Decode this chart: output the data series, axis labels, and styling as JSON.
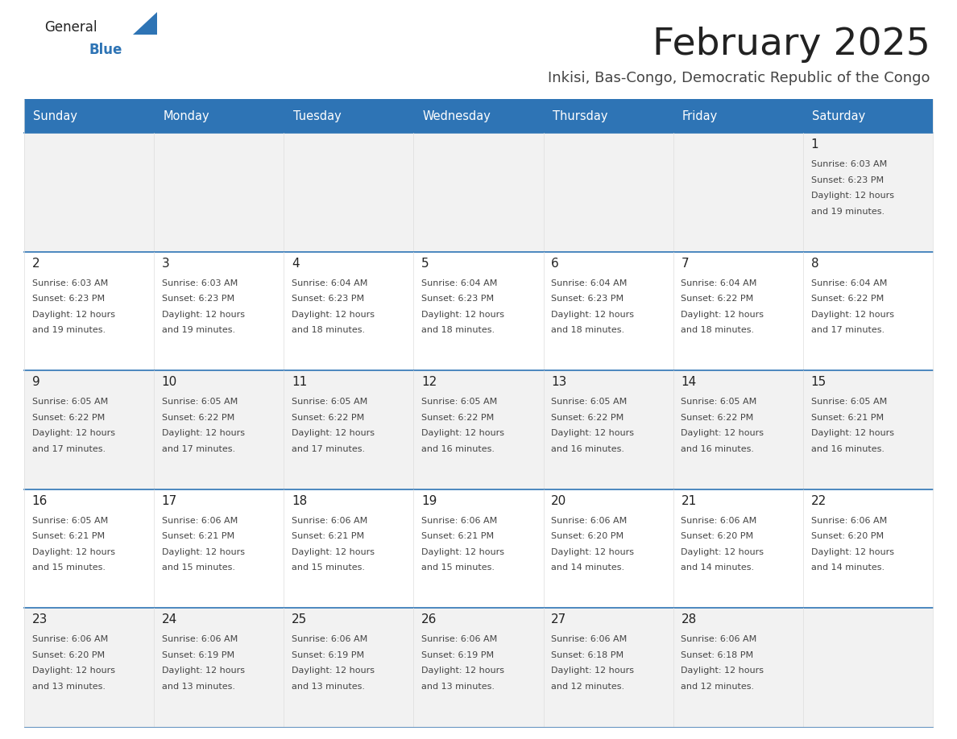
{
  "title": "February 2025",
  "subtitle": "Inkisi, Bas-Congo, Democratic Republic of the Congo",
  "header_bg": "#2E74B5",
  "header_text": "#FFFFFF",
  "cell_bg_light": "#F2F2F2",
  "cell_bg_white": "#FFFFFF",
  "cell_text": "#444444",
  "day_number_color": "#222222",
  "title_color": "#222222",
  "subtitle_color": "#444444",
  "row_separator_color": "#2E74B5",
  "cell_border_color": "#DDDDDD",
  "days_of_week": [
    "Sunday",
    "Monday",
    "Tuesday",
    "Wednesday",
    "Thursday",
    "Friday",
    "Saturday"
  ],
  "weeks": [
    [
      {
        "day": null,
        "sunrise": null,
        "sunset": null,
        "daylight": null
      },
      {
        "day": null,
        "sunrise": null,
        "sunset": null,
        "daylight": null
      },
      {
        "day": null,
        "sunrise": null,
        "sunset": null,
        "daylight": null
      },
      {
        "day": null,
        "sunrise": null,
        "sunset": null,
        "daylight": null
      },
      {
        "day": null,
        "sunrise": null,
        "sunset": null,
        "daylight": null
      },
      {
        "day": null,
        "sunrise": null,
        "sunset": null,
        "daylight": null
      },
      {
        "day": 1,
        "sunrise": "6:03 AM",
        "sunset": "6:23 PM",
        "daylight": "12 hours\nand 19 minutes."
      }
    ],
    [
      {
        "day": 2,
        "sunrise": "6:03 AM",
        "sunset": "6:23 PM",
        "daylight": "12 hours\nand 19 minutes."
      },
      {
        "day": 3,
        "sunrise": "6:03 AM",
        "sunset": "6:23 PM",
        "daylight": "12 hours\nand 19 minutes."
      },
      {
        "day": 4,
        "sunrise": "6:04 AM",
        "sunset": "6:23 PM",
        "daylight": "12 hours\nand 18 minutes."
      },
      {
        "day": 5,
        "sunrise": "6:04 AM",
        "sunset": "6:23 PM",
        "daylight": "12 hours\nand 18 minutes."
      },
      {
        "day": 6,
        "sunrise": "6:04 AM",
        "sunset": "6:23 PM",
        "daylight": "12 hours\nand 18 minutes."
      },
      {
        "day": 7,
        "sunrise": "6:04 AM",
        "sunset": "6:22 PM",
        "daylight": "12 hours\nand 18 minutes."
      },
      {
        "day": 8,
        "sunrise": "6:04 AM",
        "sunset": "6:22 PM",
        "daylight": "12 hours\nand 17 minutes."
      }
    ],
    [
      {
        "day": 9,
        "sunrise": "6:05 AM",
        "sunset": "6:22 PM",
        "daylight": "12 hours\nand 17 minutes."
      },
      {
        "day": 10,
        "sunrise": "6:05 AM",
        "sunset": "6:22 PM",
        "daylight": "12 hours\nand 17 minutes."
      },
      {
        "day": 11,
        "sunrise": "6:05 AM",
        "sunset": "6:22 PM",
        "daylight": "12 hours\nand 17 minutes."
      },
      {
        "day": 12,
        "sunrise": "6:05 AM",
        "sunset": "6:22 PM",
        "daylight": "12 hours\nand 16 minutes."
      },
      {
        "day": 13,
        "sunrise": "6:05 AM",
        "sunset": "6:22 PM",
        "daylight": "12 hours\nand 16 minutes."
      },
      {
        "day": 14,
        "sunrise": "6:05 AM",
        "sunset": "6:22 PM",
        "daylight": "12 hours\nand 16 minutes."
      },
      {
        "day": 15,
        "sunrise": "6:05 AM",
        "sunset": "6:21 PM",
        "daylight": "12 hours\nand 16 minutes."
      }
    ],
    [
      {
        "day": 16,
        "sunrise": "6:05 AM",
        "sunset": "6:21 PM",
        "daylight": "12 hours\nand 15 minutes."
      },
      {
        "day": 17,
        "sunrise": "6:06 AM",
        "sunset": "6:21 PM",
        "daylight": "12 hours\nand 15 minutes."
      },
      {
        "day": 18,
        "sunrise": "6:06 AM",
        "sunset": "6:21 PM",
        "daylight": "12 hours\nand 15 minutes."
      },
      {
        "day": 19,
        "sunrise": "6:06 AM",
        "sunset": "6:21 PM",
        "daylight": "12 hours\nand 15 minutes."
      },
      {
        "day": 20,
        "sunrise": "6:06 AM",
        "sunset": "6:20 PM",
        "daylight": "12 hours\nand 14 minutes."
      },
      {
        "day": 21,
        "sunrise": "6:06 AM",
        "sunset": "6:20 PM",
        "daylight": "12 hours\nand 14 minutes."
      },
      {
        "day": 22,
        "sunrise": "6:06 AM",
        "sunset": "6:20 PM",
        "daylight": "12 hours\nand 14 minutes."
      }
    ],
    [
      {
        "day": 23,
        "sunrise": "6:06 AM",
        "sunset": "6:20 PM",
        "daylight": "12 hours\nand 13 minutes."
      },
      {
        "day": 24,
        "sunrise": "6:06 AM",
        "sunset": "6:19 PM",
        "daylight": "12 hours\nand 13 minutes."
      },
      {
        "day": 25,
        "sunrise": "6:06 AM",
        "sunset": "6:19 PM",
        "daylight": "12 hours\nand 13 minutes."
      },
      {
        "day": 26,
        "sunrise": "6:06 AM",
        "sunset": "6:19 PM",
        "daylight": "12 hours\nand 13 minutes."
      },
      {
        "day": 27,
        "sunrise": "6:06 AM",
        "sunset": "6:18 PM",
        "daylight": "12 hours\nand 12 minutes."
      },
      {
        "day": 28,
        "sunrise": "6:06 AM",
        "sunset": "6:18 PM",
        "daylight": "12 hours\nand 12 minutes."
      },
      {
        "day": null,
        "sunrise": null,
        "sunset": null,
        "daylight": null
      }
    ]
  ]
}
